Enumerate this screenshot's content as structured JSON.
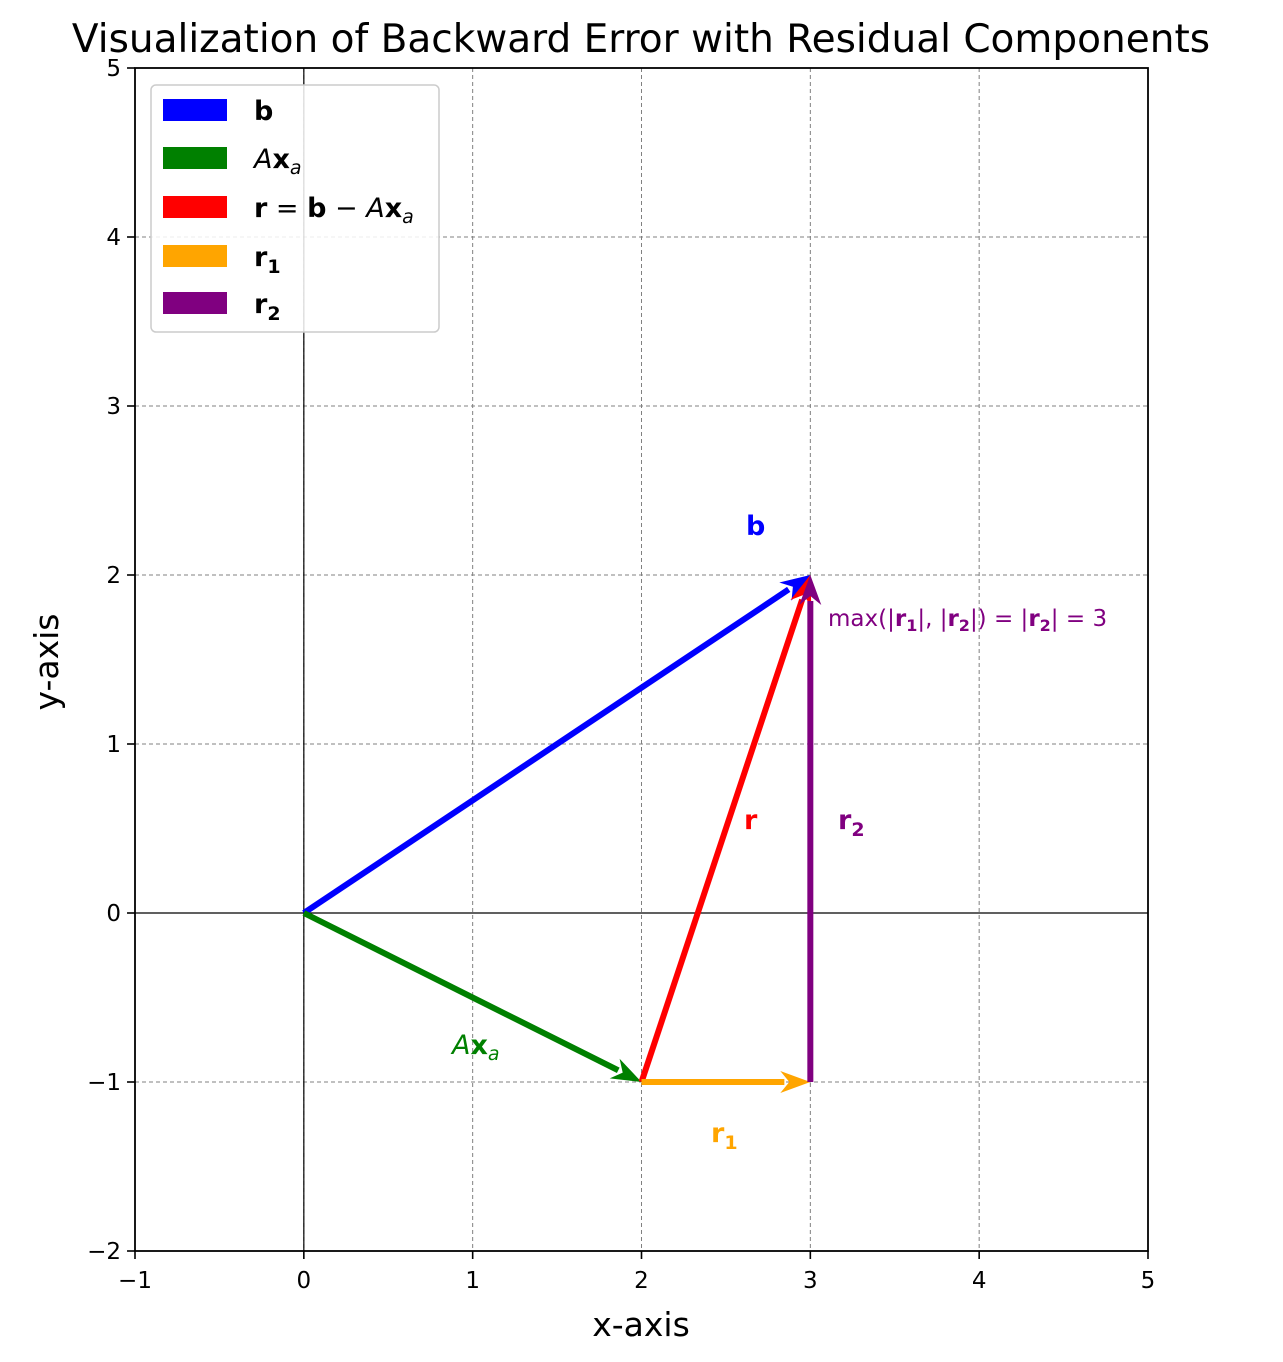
{
  "chart_data": {
    "type": "vector",
    "title": "Visualization of Backward Error with Residual Components",
    "xlabel": "x-axis",
    "ylabel": "y-axis",
    "xlim": [
      -1,
      5
    ],
    "ylim": [
      -2,
      5
    ],
    "xticks": [
      -1,
      0,
      1,
      2,
      3,
      4,
      5
    ],
    "yticks": [
      -2,
      -1,
      0,
      1,
      2,
      3,
      4,
      5
    ],
    "xtick_labels": [
      "−1",
      "0",
      "1",
      "2",
      "3",
      "4",
      "5"
    ],
    "ytick_labels": [
      "−2",
      "−1",
      "0",
      "1",
      "2",
      "3",
      "4",
      "5"
    ],
    "grid": true,
    "legend_position": "upper-left",
    "vectors": [
      {
        "id": "b",
        "legend": "b",
        "label": "b",
        "start": [
          0,
          0
        ],
        "end": [
          3,
          2
        ],
        "color": "#0000ff"
      },
      {
        "id": "Ax",
        "legend": "Axa",
        "label": "Axa",
        "start": [
          0,
          0
        ],
        "end": [
          2,
          -1
        ],
        "color": "#008000"
      },
      {
        "id": "r",
        "legend": "r = b − Axa",
        "label": "r",
        "start": [
          2,
          -1
        ],
        "end": [
          3,
          2
        ],
        "color": "#ff0000"
      },
      {
        "id": "r1",
        "legend": "r1",
        "label": "r1",
        "start": [
          2,
          -1
        ],
        "end": [
          3,
          -1
        ],
        "color": "#ffa500"
      },
      {
        "id": "r2",
        "legend": "r2",
        "label": "r2",
        "start": [
          3,
          -1
        ],
        "end": [
          3,
          2
        ],
        "color": "#800080"
      }
    ],
    "annotation": {
      "text": "max(|r1|, |r2|) = |r2| = 3",
      "color": "#800080"
    }
  }
}
